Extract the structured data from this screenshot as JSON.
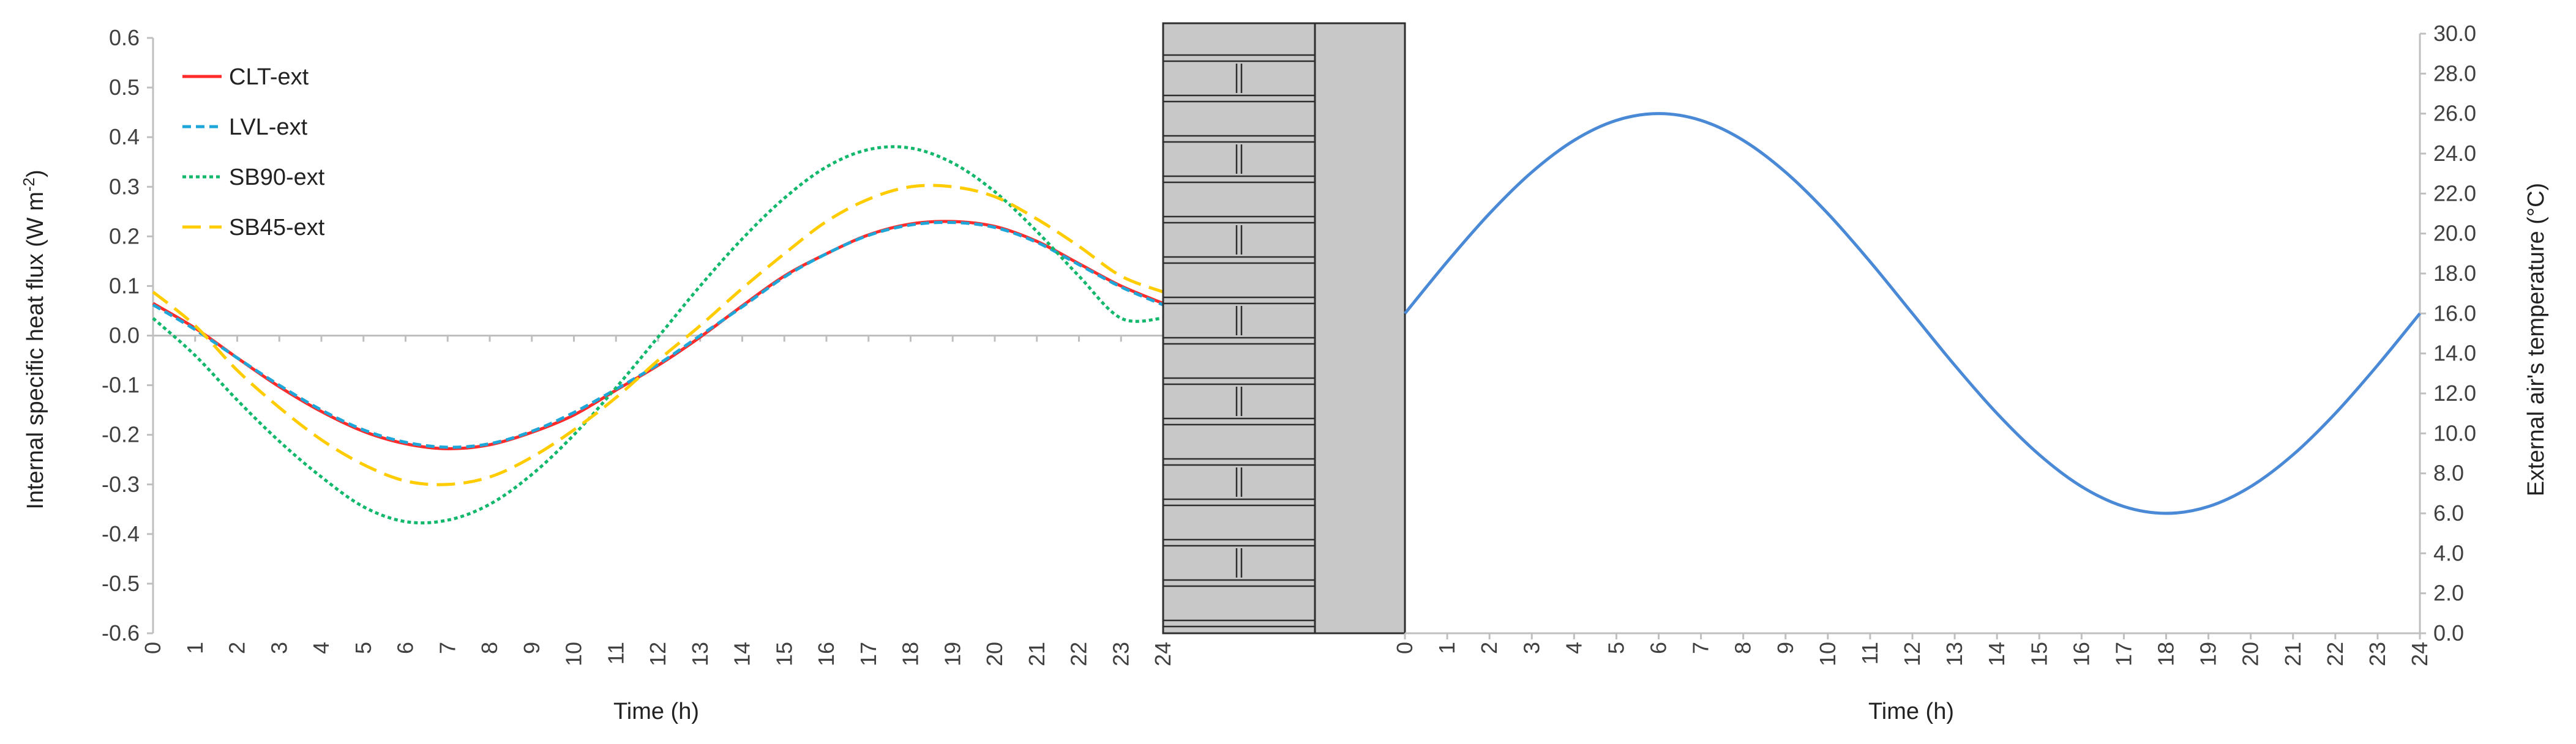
{
  "chart_data": [
    {
      "type": "line",
      "xlabel": "Time (h)",
      "ylabel": "Internal specific heat flux (W m-2)",
      "ylabel_parts": {
        "text": "Internal specific heat flux (W m",
        "sup": "-2",
        "close": ")"
      },
      "xlim": [
        0,
        24
      ],
      "ylim": [
        -0.6,
        0.6
      ],
      "x_ticks": [
        "0",
        "1",
        "2",
        "3",
        "4",
        "5",
        "6",
        "7",
        "8",
        "9",
        "10",
        "11",
        "12",
        "13",
        "14",
        "15",
        "16",
        "17",
        "18",
        "19",
        "20",
        "21",
        "22",
        "23",
        "24"
      ],
      "y_ticks": [
        "0.6",
        "0.5",
        "0.4",
        "0.3",
        "0.2",
        "0.1",
        "0.0",
        "-0.1",
        "-0.2",
        "-0.3",
        "-0.4",
        "-0.5",
        "-0.6"
      ],
      "legend_position": "top-left",
      "x": [
        0,
        1,
        2,
        3,
        4,
        5,
        6,
        7,
        8,
        9,
        10,
        11,
        12,
        13,
        14,
        15,
        16,
        17,
        18,
        19,
        20,
        21,
        22,
        23,
        24
      ],
      "series": [
        {
          "name": "CLT-ext",
          "color": "#ff2a2a",
          "dash": "solid",
          "values": [
            0.065,
            0.015,
            -0.045,
            -0.103,
            -0.153,
            -0.193,
            -0.218,
            -0.228,
            -0.22,
            -0.195,
            -0.16,
            -0.11,
            -0.06,
            -0.003,
            0.06,
            0.12,
            0.165,
            0.203,
            0.225,
            0.23,
            0.22,
            0.19,
            0.145,
            0.1,
            0.065
          ]
        },
        {
          "name": "LVL-ext",
          "color": "#1fa6d9",
          "dash": "short-dash",
          "values": [
            0.062,
            0.012,
            -0.045,
            -0.1,
            -0.15,
            -0.19,
            -0.215,
            -0.225,
            -0.218,
            -0.193,
            -0.155,
            -0.108,
            -0.058,
            0.0,
            0.058,
            0.118,
            0.165,
            0.202,
            0.223,
            0.228,
            0.218,
            0.188,
            0.143,
            0.098,
            0.062
          ]
        },
        {
          "name": "SB90-ext",
          "color": "#13b86c",
          "dash": "dot",
          "values": [
            0.035,
            -0.04,
            -0.13,
            -0.213,
            -0.285,
            -0.345,
            -0.375,
            -0.372,
            -0.34,
            -0.28,
            -0.2,
            -0.105,
            -0.003,
            0.1,
            0.195,
            0.277,
            0.34,
            0.375,
            0.378,
            0.348,
            0.29,
            0.21,
            0.12,
            0.035,
            0.035
          ]
        },
        {
          "name": "SB45-ext",
          "color": "#ffcc00",
          "dash": "long-dash",
          "values": [
            0.088,
            0.02,
            -0.07,
            -0.145,
            -0.21,
            -0.26,
            -0.293,
            -0.3,
            -0.285,
            -0.245,
            -0.19,
            -0.125,
            -0.05,
            0.02,
            0.095,
            0.165,
            0.23,
            0.275,
            0.3,
            0.3,
            0.28,
            0.235,
            0.18,
            0.12,
            0.088
          ]
        }
      ]
    },
    {
      "type": "line",
      "xlabel": "Time (h)",
      "ylabel": "External air's temperature (°C)",
      "xlim": [
        0,
        24
      ],
      "ylim": [
        0,
        30
      ],
      "x_ticks": [
        "0",
        "1",
        "2",
        "3",
        "4",
        "5",
        "6",
        "7",
        "8",
        "9",
        "10",
        "11",
        "12",
        "13",
        "14",
        "15",
        "16",
        "17",
        "18",
        "19",
        "20",
        "21",
        "22",
        "23",
        "24"
      ],
      "y_ticks": [
        "30.0",
        "28.0",
        "26.0",
        "24.0",
        "22.0",
        "20.0",
        "18.0",
        "16.0",
        "14.0",
        "12.0",
        "10.0",
        "8.0",
        "6.0",
        "4.0",
        "2.0",
        "0.0"
      ],
      "x": [
        0,
        1,
        2,
        3,
        4,
        5,
        6,
        7,
        8,
        9,
        10,
        11,
        12,
        13,
        14,
        15,
        16,
        17,
        18,
        19,
        20,
        21,
        22,
        23,
        24
      ],
      "series": [
        {
          "name": "",
          "color": "#4a89d6",
          "dash": "solid",
          "values": [
            16.0,
            18.59,
            21.0,
            23.07,
            24.66,
            25.66,
            26.0,
            25.66,
            24.66,
            23.07,
            21.0,
            18.59,
            16.0,
            13.41,
            11.0,
            8.93,
            7.34,
            6.34,
            6.0,
            6.34,
            7.34,
            8.93,
            11.0,
            13.41,
            16.0
          ]
        }
      ]
    }
  ],
  "wall_colors": {
    "fill": "#c8c8c8",
    "stroke": "#2e2e2e"
  }
}
